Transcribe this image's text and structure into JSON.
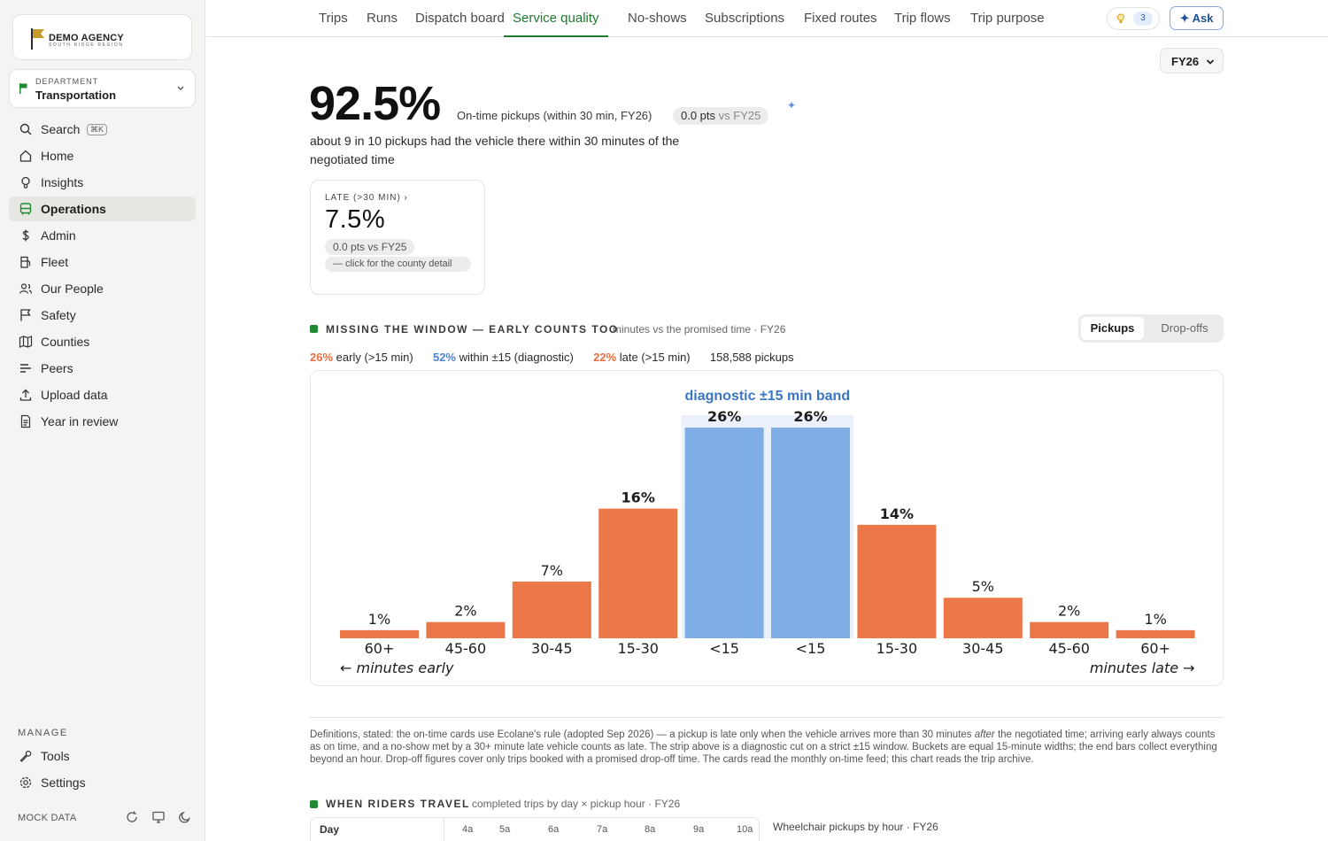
{
  "brand": {
    "name": "DEMO AGENCY",
    "region": "SOUTH RIDGE REGION"
  },
  "department": {
    "label": "DEPARTMENT",
    "value": "Transportation"
  },
  "nav": {
    "search": {
      "label": "Search",
      "shortcut": "⌘K"
    },
    "items": [
      {
        "label": "Home",
        "icon": "home-icon"
      },
      {
        "label": "Insights",
        "icon": "lightbulb-icon"
      },
      {
        "label": "Operations",
        "icon": "bus-icon",
        "active": true
      },
      {
        "label": "Admin",
        "icon": "dollar-icon"
      },
      {
        "label": "Fleet",
        "icon": "fuel-icon"
      },
      {
        "label": "Our People",
        "icon": "people-icon"
      },
      {
        "label": "Safety",
        "icon": "flag-icon"
      },
      {
        "label": "Counties",
        "icon": "map-icon"
      },
      {
        "label": "Peers",
        "icon": "bars-icon"
      },
      {
        "label": "Upload data",
        "icon": "upload-icon"
      },
      {
        "label": "Year in review",
        "icon": "document-icon"
      }
    ],
    "manage_title": "MANAGE",
    "tools": "Tools",
    "settings": "Settings",
    "mock_label": "MOCK DATA"
  },
  "tabs": [
    "Trips",
    "Runs",
    "Dispatch board",
    "Service quality",
    "No-shows",
    "Subscriptions",
    "Fixed routes",
    "Trip flows",
    "Trip purpose"
  ],
  "active_tab": "Service quality",
  "header": {
    "insights_count": "3",
    "ask_label": "✦ Ask"
  },
  "fiscal_year": "FY26",
  "kpi": {
    "value": "92.5%",
    "caption": "On-time pickups (within 30 min, FY26)",
    "delta_pts": "0.0 pts",
    "delta_vs": "vs FY25",
    "description": "about 9 in 10 pickups had the vehicle there within 30 minutes of the negotiated time"
  },
  "late_card": {
    "title": "LATE (>30 MIN) ›",
    "value": "7.5%",
    "delta": "0.0 pts  vs FY25",
    "hint": "— click for the county detail"
  },
  "window_section": {
    "title": "MISSING THE WINDOW — EARLY COUNTS TOO",
    "subtitle": "minutes vs the promised time · FY26",
    "toggle": {
      "active": "Pickups",
      "inactive": "Drop-offs"
    },
    "summary": {
      "early_pct": "26%",
      "early_label": "early (>15 min)",
      "within_pct": "52%",
      "within_label": "within ±15 (diagnostic)",
      "late_pct": "22%",
      "late_label": "late (>15 min)",
      "total": "158,588 pickups"
    }
  },
  "chart_data": {
    "type": "bar",
    "title": "",
    "band_label": "diagnostic ±15 min band",
    "categories": [
      "60+",
      "45-60",
      "30-45",
      "15-30",
      "<15",
      "<15",
      "15-30",
      "30-45",
      "45-60",
      "60+"
    ],
    "values": [
      1,
      2,
      7,
      16,
      26,
      26,
      14,
      5,
      2,
      1
    ],
    "value_labels": [
      "1%",
      "2%",
      "7%",
      "16%",
      "26%",
      "26%",
      "14%",
      "5%",
      "2%",
      "1%"
    ],
    "groups": [
      "early",
      "early",
      "early",
      "early",
      "band",
      "band",
      "late",
      "late",
      "late",
      "late"
    ],
    "colors": {
      "early": "#ec7748",
      "late": "#ec7748",
      "band": "#7eaee3",
      "band_bg": "#eaf1fb",
      "band_text": "#3a76c4"
    },
    "xlabel_left": "← minutes early",
    "xlabel_right": "minutes late →",
    "ylim": [
      0,
      26
    ]
  },
  "definitions": {
    "before": "Definitions, stated: the on-time cards use Ecolane's rule (adopted Sep 2026) — a pickup is late only when the vehicle arrives more than 30 minutes ",
    "emph": "after",
    "after": " the negotiated time; arriving early always counts as on time, and a no-show met by a 30+ minute late vehicle counts as late. The strip above is a diagnostic cut on a strict ±15 window. Buckets are equal 15-minute widths; the end bars collect everything beyond an hour. Drop-off figures cover only trips booked with a promised drop-off time. The cards read the monthly on-time feed; this chart reads the trip archive."
  },
  "travel_section": {
    "title": "WHEN RIDERS TRAVEL",
    "subtitle": "completed trips by day × pickup hour · FY26",
    "day_header": "Day",
    "hours": [
      "4a",
      "5a",
      "6a",
      "7a",
      "8a",
      "9a",
      "10a"
    ],
    "wheelchair_title": "Wheelchair pickups by hour · FY26"
  }
}
